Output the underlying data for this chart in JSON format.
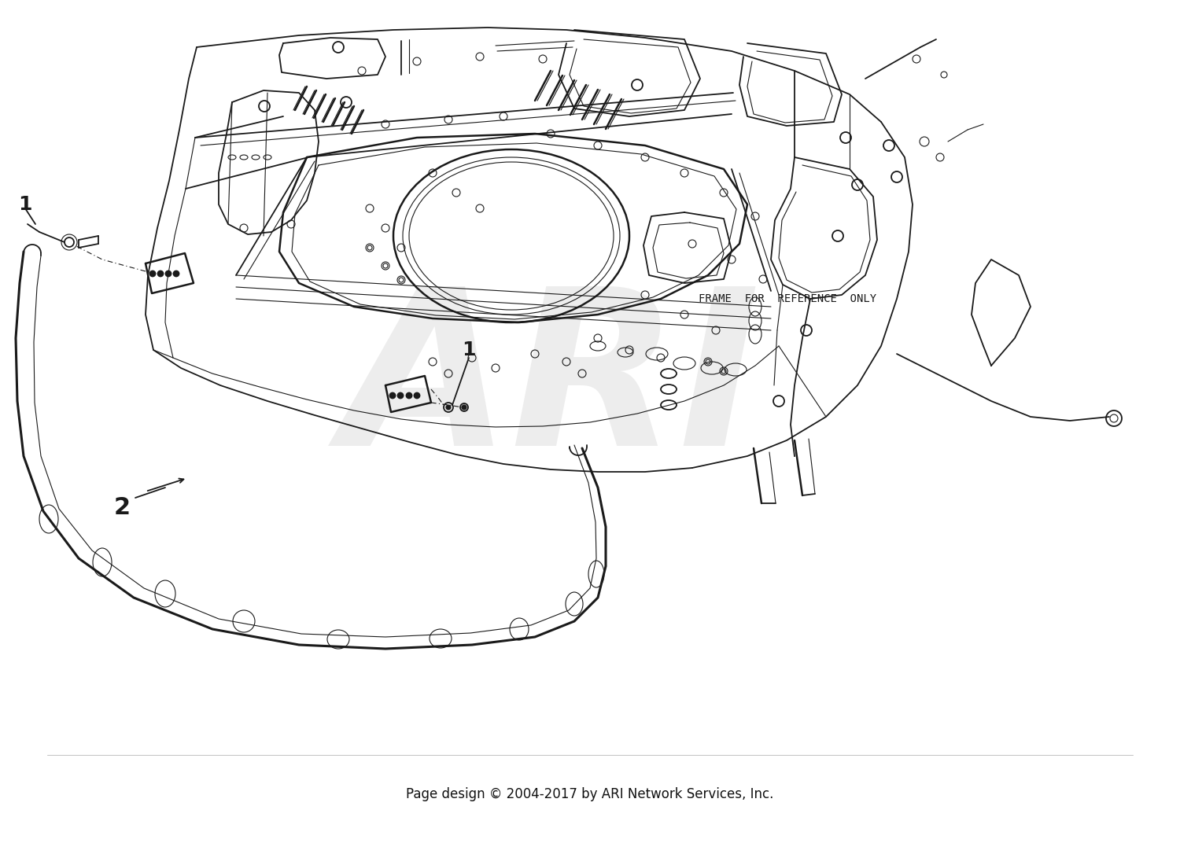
{
  "background_color": "#ffffff",
  "line_color": "#1a1a1a",
  "watermark_color": "#c0c0c0",
  "watermark_text": "ARI",
  "watermark_alpha": 0.28,
  "label1_text": "1",
  "label2_text": "2",
  "frame_ref_text": "FRAME  FOR  REFERENCE  ONLY",
  "copyright_text": "Page design © 2004-2017 by ARI Network Services, Inc.",
  "copyright_fontsize": 12,
  "label_fontsize": 18,
  "frame_ref_fontsize": 10,
  "fig_width": 15.0,
  "fig_height": 10.86
}
